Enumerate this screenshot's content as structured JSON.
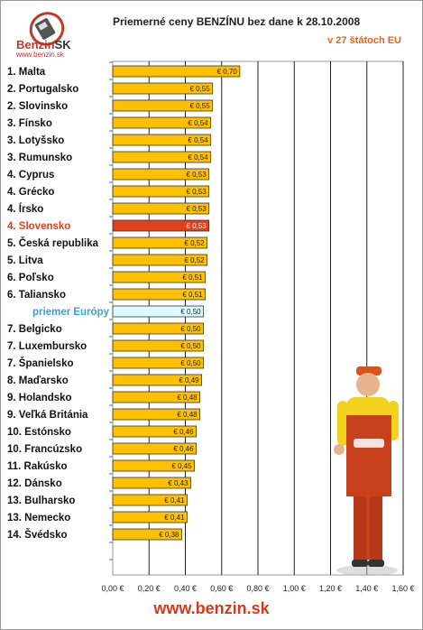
{
  "header": {
    "title": "Priemerné ceny BENZÍNU bez dane k 28.10.2008",
    "subtitle": "v 27 štátoch EU"
  },
  "logo": {
    "brand_a": "Benzin",
    "brand_b": "SK",
    "url": "www.benzin.sk"
  },
  "footer": {
    "url": "www.benzin.sk"
  },
  "colors": {
    "bar": "#ffc000",
    "highlight_bar": "#e2401b",
    "highlight_label": "#e2401b",
    "average_bar": "#dcfcff",
    "average_label": "#3aa0d8"
  },
  "chart_data": {
    "type": "bar",
    "orientation": "horizontal",
    "title": "Priemerné ceny BENZÍNU bez dane k 28.10.2008",
    "subtitle": "v 27 štátoch EU",
    "xlim": [
      0,
      1.6
    ],
    "x_ticks": [
      "0,00 €",
      "0,20 €",
      "0,40 €",
      "0,60 €",
      "0,80 €",
      "1,00 €",
      "1,20 €",
      "1,40 €",
      "1,60 €"
    ],
    "grid": true,
    "categories": [
      "1. Malta",
      "2. Portugalsko",
      "2. Slovinsko",
      "3. Fínsko",
      "3. Lotyšsko",
      "3. Rumunsko",
      "4. Cyprus",
      "4. Grécko",
      "4. Írsko",
      "4. Slovensko",
      "5. Česká republika",
      "5. Litva",
      "6. Poľsko",
      "6. Taliansko",
      "priemer Európy",
      "7. Belgicko",
      "7. Luxembursko",
      "7. Španielsko",
      "8. Maďarsko",
      "9. Holandsko",
      "9. Veľká Británia",
      "10. Estónsko",
      "10. Francúzsko",
      "11. Rakúsko",
      "12. Dánsko",
      "13. Bulharsko",
      "13. Nemecko",
      "14. Švédsko"
    ],
    "values": [
      0.7,
      0.55,
      0.55,
      0.54,
      0.54,
      0.54,
      0.53,
      0.53,
      0.53,
      0.53,
      0.52,
      0.52,
      0.51,
      0.51,
      0.5,
      0.5,
      0.5,
      0.5,
      0.49,
      0.48,
      0.48,
      0.46,
      0.46,
      0.45,
      0.43,
      0.41,
      0.41,
      0.38
    ],
    "value_labels": [
      "€ 0,70",
      "€ 0,55",
      "€ 0,55",
      "€ 0,54",
      "€ 0,54",
      "€ 0,54",
      "€ 0,53",
      "€ 0,53",
      "€ 0,53",
      "€ 0,53",
      "€ 0,52",
      "€ 0,52",
      "€ 0,51",
      "€ 0,51",
      "€ 0,50",
      "€ 0,50",
      "€ 0,50",
      "€ 0,50",
      "€ 0,49",
      "€ 0,48",
      "€ 0,48",
      "€ 0,46",
      "€ 0,46",
      "€ 0,45",
      "€ 0,43",
      "€ 0,41",
      "€ 0,41",
      "€ 0,38"
    ],
    "highlight_category": "4. Slovensko",
    "average_category": "priemer Európy"
  }
}
